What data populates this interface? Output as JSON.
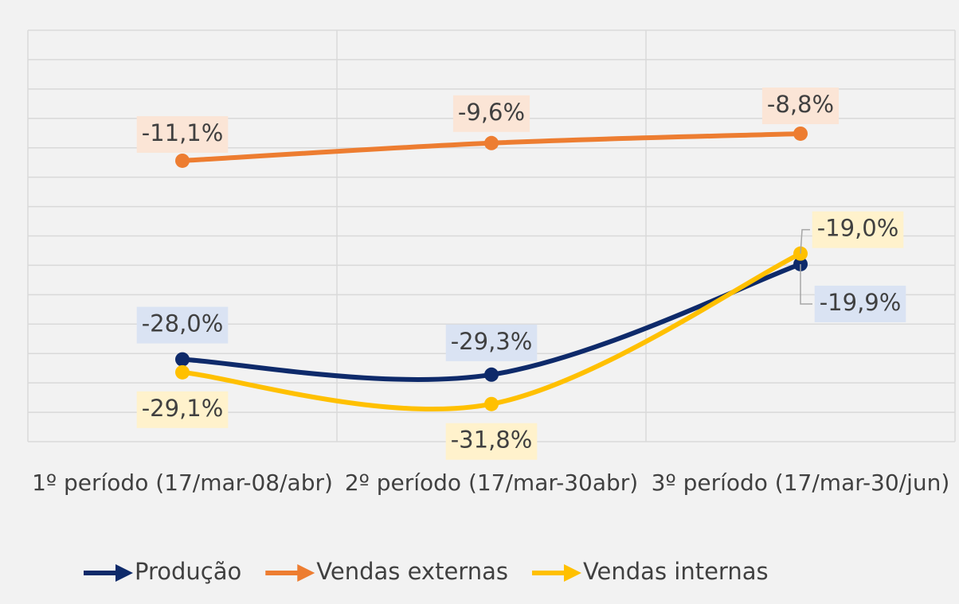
{
  "chart_data": {
    "type": "line",
    "categories": [
      "1º período (17/mar-08/abr)",
      "2º período (17/mar-30abr)",
      "3º período (17/mar-30/jun)"
    ],
    "series": [
      {
        "name": "Produção",
        "color": "#0e2a6a",
        "label_bg": "#dae3f3",
        "values": [
          -28.0,
          -29.3,
          -19.9
        ],
        "value_labels": [
          "-28,0%",
          "-29,3%",
          "-19,9%"
        ]
      },
      {
        "name": "Vendas externas",
        "color": "#ed7d31",
        "label_bg": "#fbe5d6",
        "values": [
          -11.1,
          -9.6,
          -8.8
        ],
        "value_labels": [
          "-11,1%",
          "-9,6%",
          "-8,8%"
        ]
      },
      {
        "name": "Vendas internas",
        "color": "#ffc000",
        "label_bg": "#fff2cc",
        "values": [
          -29.1,
          -31.8,
          -19.0
        ],
        "value_labels": [
          "-29,1%",
          "-31,8%",
          "-19,0%"
        ]
      }
    ],
    "ylim": [
      -35,
      0
    ],
    "yticks": [
      0,
      -2.5,
      -5,
      -7.5,
      -10,
      -12.5,
      -15,
      -17.5,
      -20,
      -22.5,
      -25,
      -27.5,
      -30,
      -32.5,
      -35
    ],
    "grid": true,
    "legend": "bottom"
  }
}
